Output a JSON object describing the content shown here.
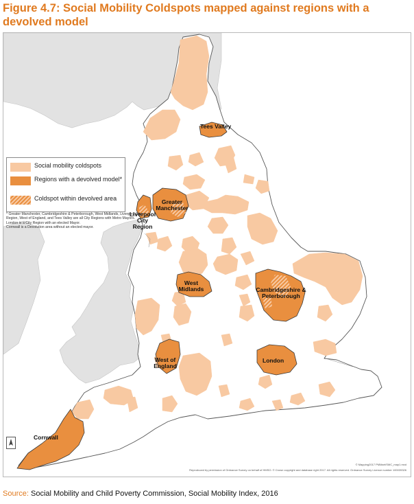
{
  "title": "Figure 4.7: Social Mobility Coldspots mapped against regions with a devolved model",
  "colors": {
    "coldspot": "#f8c9a2",
    "devolved": "#e98f3f",
    "land": "#ffffff",
    "neighbouring_land": "#e2e2e2",
    "sea": "#ffffff",
    "title": "#e07a1f"
  },
  "legend": {
    "items": [
      {
        "label": "Social mobility coldspots",
        "swatch": "coldspot"
      },
      {
        "label": "Regions with a devolved model*",
        "swatch": "devolved"
      },
      {
        "label": "Coldspot within devolved area",
        "swatch": "hatched"
      }
    ],
    "footnotes": [
      "* Greater Manchester, Cambridgeshire & Peterborough, West Midlands, Liverpool City Region, West of England, and Tees Valley are all City Regions with Metro Mayors.",
      "London is a City Region with an elected Mayor.",
      "Cornwall is a Devolution area without an elected mayor."
    ]
  },
  "regions": {
    "tees_valley": "Tees Valley",
    "greater_manchester": "Greater Manchester",
    "liverpool": "Liverpool City Region",
    "west_midlands": "West Midlands",
    "cambridgeshire": "Cambridgeshire & Peterborough",
    "west_of_england": "West of England",
    "london": "London",
    "cornwall": "Cornwall"
  },
  "copyright": {
    "line1": "© Mapping2017 PMMart/SMC_map1.mxd",
    "line2": "Reproduced by permission of Ordnance Survey on behalf of HMSO. © Crown copyright and database right 2017. All rights reserved. Ordnance Survey Licence number 100039326"
  },
  "source": {
    "label": "Source:",
    "text": "Social Mobility and Child Poverty Commission, Social Mobility Index, 2016"
  }
}
